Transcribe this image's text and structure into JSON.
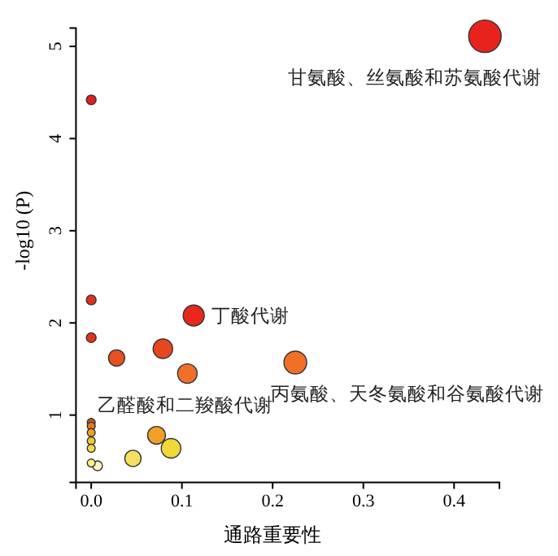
{
  "chart_data": {
    "type": "bubble",
    "xlabel": "通路重要性",
    "ylabel": "-log10 (P)",
    "x": [
      0.434,
      0,
      0,
      0,
      0.028,
      0.079,
      0.113,
      0.106,
      0.225,
      0,
      0,
      0,
      0,
      0,
      0,
      0.007,
      0.046,
      0.072,
      0.088
    ],
    "values": [
      5.11,
      4.42,
      2.25,
      1.84,
      1.62,
      1.72,
      2.08,
      1.45,
      1.57,
      0.92,
      0.88,
      0.81,
      0.72,
      0.64,
      0.48,
      0.45,
      0.53,
      0.78,
      0.64
    ],
    "sizes": [
      1,
      0.09,
      0.09,
      0.09,
      0.25,
      0.36,
      0.42,
      0.36,
      0.49,
      0.06,
      0.06,
      0.06,
      0.06,
      0.06,
      0.06,
      0.09,
      0.25,
      0.3,
      0.36
    ],
    "colors": [
      "#e8231e",
      "#e01f1a",
      "#e0301e",
      "#e0341f",
      "#e8501f",
      "#e8461f",
      "#e8281c",
      "#f0702a",
      "#f07028",
      "#c05a25",
      "#e07a20",
      "#f0a020",
      "#f0c830",
      "#f0dc40",
      "#f8f080",
      "#fcf8c8",
      "#f4e060",
      "#f0a028",
      "#f0d838"
    ],
    "xlim": [
      -0.0168,
      0.45
    ],
    "ylim": [
      0.27,
      5.2
    ],
    "xticks": [
      {
        "value": 0,
        "label": "0.0"
      },
      0.1,
      0.2,
      0.3,
      0.4
    ],
    "yticks": [
      1,
      2,
      3,
      4,
      5
    ],
    "annotations": [
      {
        "text": "甘氨酸、丝氨酸和苏氨酸代谢",
        "x": 0.434,
        "y": 5.11
      },
      {
        "text": "丁酸代谢",
        "x": 0.113,
        "y": 2.08
      },
      {
        "text": "丙氨酸、天冬氨酸和谷氨酸代谢",
        "x": 0.225,
        "y": 1.57
      },
      {
        "text": "乙醛酸和二羧酸代谢",
        "x": 0.106,
        "y": 1.45
      }
    ],
    "grid": false
  }
}
